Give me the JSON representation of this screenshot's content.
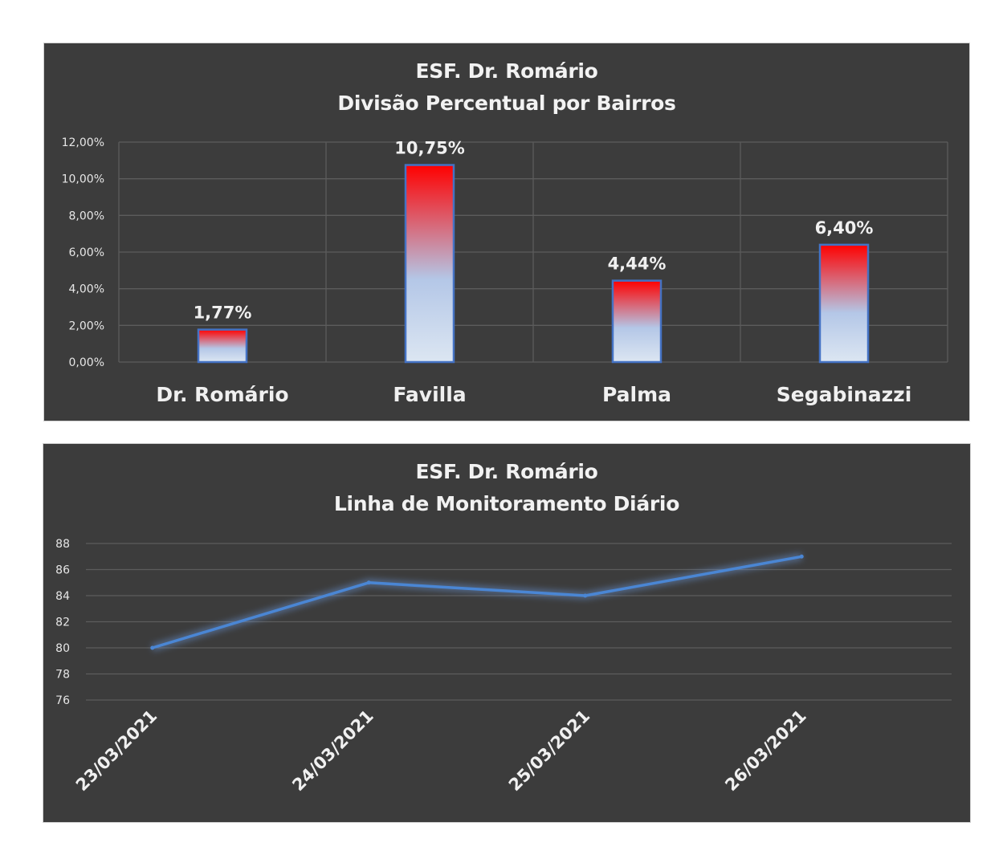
{
  "charts": [
    {
      "id": "bar",
      "title_line1": "ESF. Dr. Romário",
      "title_line2": "Divisão Percentual por Bairros"
    },
    {
      "id": "line",
      "title_line1": "ESF. Dr. Romário",
      "title_line2": "Linha de Monitoramento Diário"
    }
  ],
  "chart_data": [
    {
      "type": "bar",
      "title": "ESF. Dr. Romário\nDivisão Percentual por Bairros",
      "categories": [
        "Dr. Romário",
        "Favilla",
        "Palma",
        "Segabinazzi"
      ],
      "values": [
        1.77,
        10.75,
        4.44,
        6.4
      ],
      "data_labels": [
        "1,77%",
        "10,75%",
        "4,44%",
        "6,40%"
      ],
      "ylim": [
        0,
        12
      ],
      "yticks": [
        0,
        2,
        4,
        6,
        8,
        10,
        12
      ],
      "ytick_labels": [
        "0,00%",
        "2,00%",
        "4,00%",
        "6,00%",
        "8,00%",
        "10,00%",
        "12,00%"
      ],
      "grid": true,
      "colors": {
        "bar_top": "#ff0000",
        "bar_bottom": "#dce6f2",
        "bar_mid": "#b4c7e7",
        "bar_border": "#4472c4"
      }
    },
    {
      "type": "line",
      "title": "ESF. Dr. Romário\nLinha de Monitoramento Diário",
      "x": [
        "23/03/2021",
        "24/03/2021",
        "25/03/2021",
        "26/03/2021"
      ],
      "values": [
        80,
        85,
        84,
        87
      ],
      "ylim": [
        76,
        88
      ],
      "yticks": [
        76,
        78,
        80,
        82,
        84,
        86,
        88
      ],
      "ytick_labels": [
        "76",
        "78",
        "80",
        "82",
        "84",
        "86",
        "88"
      ],
      "grid": true,
      "colors": {
        "line": "#4a86d4"
      }
    }
  ]
}
